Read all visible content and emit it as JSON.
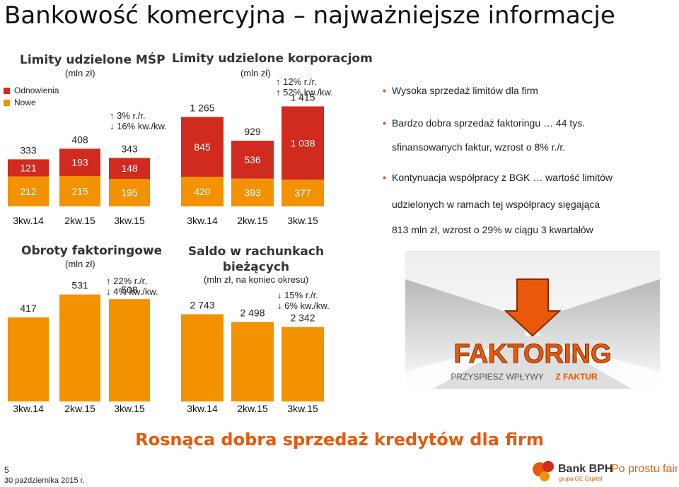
{
  "page": {
    "title": "Bankowość komercyjna – najważniejsze informacje",
    "subtitle": "Rosnąca dobra sprzedaż kredytów dla firm",
    "page_number": "5",
    "date": "30 października 2015 r."
  },
  "colors": {
    "accent": "#e8590c",
    "new": "#f39200",
    "renewals": "#d12a1e",
    "header_red": "#c9302c"
  },
  "legend": {
    "renewals": "Odnowienia",
    "new": "Nowe"
  },
  "bullets": [
    "Wysoka sprzedaż limitów dla firm",
    "Bardzo dobra sprzedaż faktoringu … 44 tys.",
    "sfinansowanych faktur, wzrost o 8% r./r.",
    "Kontynuacja współpracy z  BGK … wartość limitów",
    "udzielonych w ramach tej współpracy sięgająca",
    "813 mln zł, wzrost o 29% w ciągu 3 kwartałów"
  ],
  "promo": {
    "word": "FAKTORING",
    "tagline_part1": "PRZYSPIESZ WPŁYWY",
    "tagline_part2": "Z FAKTUR"
  },
  "bank": {
    "name": "Bank BPH",
    "sub": "grupa GE Capital",
    "slogan": "Po prostu fair"
  },
  "chart_data": [
    {
      "type": "bar",
      "stacked": true,
      "title": "Limity udzielone MŚP",
      "unit": "(mln zł)",
      "categories": [
        "3kw.14",
        "2kw.15",
        "3kw.15"
      ],
      "series": [
        {
          "name": "Nowe",
          "values": [
            212,
            215,
            195
          ]
        },
        {
          "name": "Odnowienia",
          "values": [
            121,
            193,
            148
          ]
        }
      ],
      "totals": [
        333,
        408,
        343
      ],
      "growth": [
        "3% r./r.",
        "16% kw./kw."
      ]
    },
    {
      "type": "bar",
      "stacked": true,
      "title": "Limity udzielone korporacjom",
      "unit": "(mln zł)",
      "categories": [
        "3kw.14",
        "2kw.15",
        "3kw.15"
      ],
      "series": [
        {
          "name": "Nowe",
          "values": [
            420,
            393,
            377
          ]
        },
        {
          "name": "Odnowienia",
          "values": [
            845,
            536,
            1038
          ]
        }
      ],
      "totals": [
        1265,
        929,
        1415
      ],
      "value_labels": {
        "new": [
          "420",
          "393",
          "377"
        ],
        "renewals": [
          "845",
          "536",
          "1 038"
        ],
        "totals": [
          "1 265",
          "929",
          "1 415"
        ]
      },
      "growth": [
        "12% r./r.",
        "52% kw./kw."
      ]
    },
    {
      "type": "bar",
      "title": "Obroty faktoringowe",
      "unit": "(mln zł)",
      "categories": [
        "3kw.14",
        "2kw.15",
        "3kw.15"
      ],
      "values": [
        417,
        531,
        508
      ],
      "value_labels": [
        "417",
        "531",
        "508"
      ],
      "growth": [
        "22% r./r.",
        "4% kw./kw."
      ]
    },
    {
      "type": "bar",
      "title": "Saldo w rachunkach bieżących",
      "unit": "(mln zł, na koniec okresu)",
      "categories": [
        "3kw.14",
        "2kw.15",
        "3kw.15"
      ],
      "values": [
        2743,
        2498,
        2342
      ],
      "value_labels": [
        "2 743",
        "2 498",
        "2 342"
      ],
      "growth": [
        "15% r./r.",
        "6% kw./kw."
      ]
    }
  ]
}
